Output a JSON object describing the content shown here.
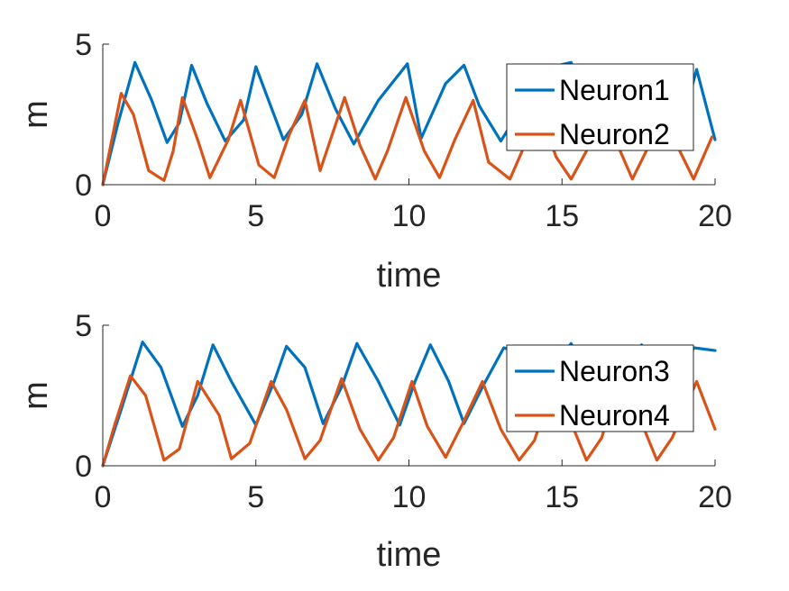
{
  "chart_data": [
    {
      "type": "line",
      "xlabel": "time",
      "ylabel": "m",
      "xlim": [
        0,
        20
      ],
      "ylim": [
        0,
        5
      ],
      "xticks": [
        "0",
        "5",
        "10",
        "15",
        "20"
      ],
      "yticks": [
        "0",
        "5"
      ],
      "legend_position": "top-right",
      "series": [
        {
          "name": "Neuron1",
          "color": "#0072BD",
          "x": [
            0,
            0.5,
            1.05,
            1.6,
            2.1,
            2.5,
            2.9,
            3.4,
            4.0,
            4.6,
            5.0,
            5.9,
            6.5,
            7.0,
            7.6,
            8.2,
            9.0,
            9.95,
            10.4,
            11.2,
            11.8,
            12.3,
            13.0,
            13.6,
            14.3,
            15.3,
            15.8,
            16.3,
            17.0,
            17.6,
            18.2,
            18.8,
            19.4,
            20.0
          ],
          "y": [
            0,
            2.2,
            4.35,
            3.0,
            1.5,
            2.2,
            4.25,
            2.9,
            1.55,
            2.3,
            4.2,
            1.6,
            2.5,
            4.3,
            2.7,
            1.45,
            3.0,
            4.3,
            1.65,
            3.6,
            4.25,
            2.8,
            1.55,
            2.6,
            4.1,
            4.35,
            2.8,
            1.7,
            2.8,
            4.2,
            2.9,
            1.7,
            4.1,
            1.6
          ]
        },
        {
          "name": "Neuron2",
          "color": "#D95319",
          "x": [
            0,
            0.6,
            1.0,
            1.5,
            2.0,
            2.3,
            2.6,
            3.1,
            3.5,
            4.1,
            4.5,
            5.1,
            5.6,
            6.1,
            6.6,
            7.1,
            7.9,
            8.4,
            8.9,
            9.3,
            9.9,
            10.5,
            11.0,
            11.5,
            12.1,
            12.6,
            13.3,
            13.7,
            14.2,
            14.8,
            15.3,
            15.8,
            16.4,
            16.9,
            17.3,
            17.8,
            18.3,
            18.8,
            19.3,
            19.9
          ],
          "y": [
            0,
            3.25,
            2.5,
            0.5,
            0.15,
            1.2,
            3.1,
            1.6,
            0.25,
            1.6,
            3.0,
            0.7,
            0.25,
            1.8,
            3.0,
            0.5,
            3.1,
            1.4,
            0.2,
            1.2,
            3.1,
            1.2,
            0.25,
            1.6,
            3.0,
            0.8,
            0.2,
            1.2,
            3.0,
            1.0,
            0.2,
            1.2,
            3.0,
            1.2,
            0.2,
            1.3,
            2.9,
            1.3,
            0.2,
            1.7
          ]
        }
      ]
    },
    {
      "type": "line",
      "xlabel": "time",
      "ylabel": "m",
      "xlim": [
        0,
        20
      ],
      "ylim": [
        0,
        5
      ],
      "xticks": [
        "0",
        "5",
        "10",
        "15",
        "20"
      ],
      "yticks": [
        "0",
        "5"
      ],
      "legend_position": "top-right",
      "series": [
        {
          "name": "Neuron3",
          "color": "#0072BD",
          "x": [
            0,
            0.6,
            1.3,
            1.9,
            2.6,
            3.1,
            3.6,
            4.2,
            5.0,
            5.6,
            6.0,
            6.6,
            7.2,
            7.8,
            8.3,
            9.0,
            9.7,
            10.2,
            10.7,
            11.3,
            11.8,
            12.4,
            13.1,
            13.6,
            14.3,
            15.3,
            15.8,
            16.3,
            17.0,
            17.6,
            18.2,
            18.7,
            19.3,
            20.0
          ],
          "y": [
            0,
            2.0,
            4.4,
            3.5,
            1.4,
            2.5,
            4.3,
            3.0,
            1.45,
            3.0,
            4.25,
            3.5,
            1.5,
            2.8,
            4.35,
            3.0,
            1.45,
            3.0,
            4.3,
            3.0,
            1.5,
            2.8,
            4.2,
            4.0,
            3.0,
            4.35,
            3.2,
            2.0,
            3.3,
            4.3,
            3.2,
            2.4,
            4.2,
            4.1
          ]
        },
        {
          "name": "Neuron4",
          "color": "#D95319",
          "x": [
            0,
            0.4,
            0.9,
            1.4,
            2.0,
            2.5,
            3.1,
            3.8,
            4.2,
            4.8,
            5.5,
            6.0,
            6.6,
            7.1,
            7.8,
            8.4,
            9.0,
            9.5,
            10.1,
            10.6,
            11.2,
            11.8,
            12.4,
            13.0,
            13.6,
            14.1,
            14.7,
            15.2,
            15.8,
            16.3,
            16.8,
            17.5,
            18.1,
            18.6,
            19.4,
            20.0
          ],
          "y": [
            0,
            1.5,
            3.2,
            2.5,
            0.2,
            0.6,
            3.0,
            1.8,
            0.25,
            0.8,
            3.0,
            2.0,
            0.25,
            0.9,
            3.1,
            1.3,
            0.2,
            1.0,
            3.0,
            1.4,
            0.3,
            1.6,
            3.0,
            1.3,
            0.2,
            0.9,
            2.9,
            1.8,
            0.2,
            1.0,
            2.9,
            1.8,
            0.2,
            1.0,
            3.0,
            1.3
          ]
        }
      ]
    }
  ]
}
